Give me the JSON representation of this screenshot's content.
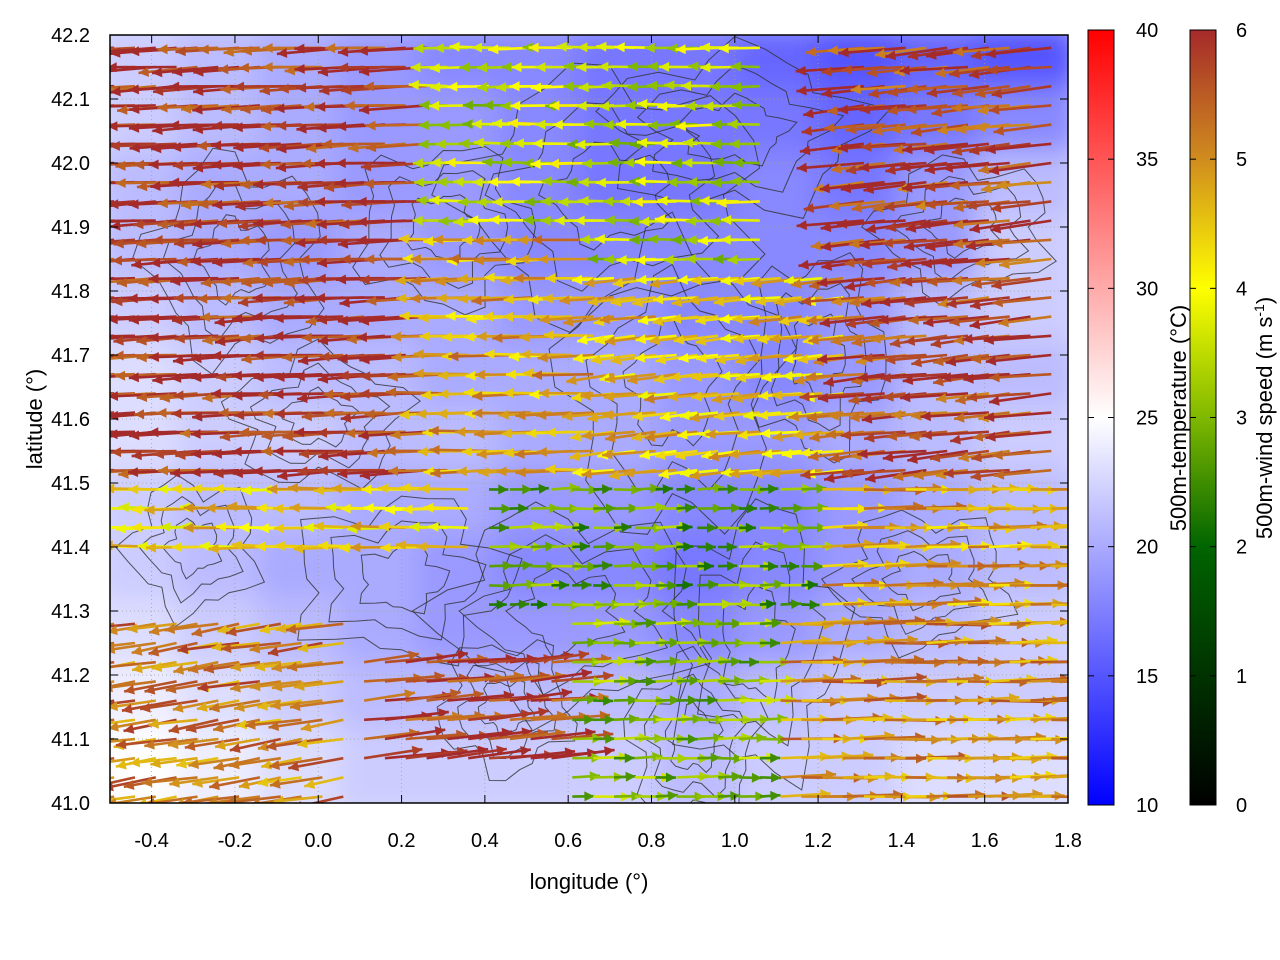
{
  "chart_data": {
    "type": "heatmap",
    "xlabel": "longitude (°)",
    "ylabel": "latitude (°)",
    "xlim": [
      -0.5,
      1.8
    ],
    "ylim": [
      41.0,
      42.2
    ],
    "x_ticks": [
      -0.4,
      -0.2,
      0.0,
      0.2,
      0.4,
      0.6,
      0.8,
      1.0,
      1.2,
      1.4,
      1.6,
      1.8
    ],
    "x_tick_labels": [
      "-0.4",
      "-0.2",
      "0.0",
      "0.2",
      "0.4",
      "0.6",
      "0.8",
      "1.0",
      "1.2",
      "1.4",
      "1.6",
      "1.8"
    ],
    "y_ticks": [
      41.0,
      41.1,
      41.2,
      41.3,
      41.4,
      41.5,
      41.6,
      41.7,
      41.8,
      41.9,
      42.0,
      42.1,
      42.2
    ],
    "y_tick_labels": [
      "41.0",
      "41.1",
      "41.2",
      "41.3",
      "41.4",
      "41.5",
      "41.6",
      "41.7",
      "41.8",
      "41.9",
      "42.0",
      "42.1",
      "42.2"
    ],
    "grid": true,
    "temperature_colorbar": {
      "label": "500m-temperature (°C)",
      "range": [
        10,
        40
      ],
      "ticks": [
        10,
        15,
        20,
        25,
        30,
        35,
        40
      ],
      "tick_labels": [
        "10",
        "15",
        "20",
        "25",
        "30",
        "35",
        "40"
      ],
      "colors": [
        "#0000ff",
        "#ffffff",
        "#ff0000"
      ]
    },
    "wind_colorbar": {
      "label_main": "500m-wind speed (m s",
      "label_sup": "-1",
      "label_close": ")",
      "range": [
        0,
        6
      ],
      "ticks": [
        0,
        1,
        2,
        3,
        4,
        5,
        6
      ],
      "tick_labels": [
        "0",
        "1",
        "2",
        "3",
        "4",
        "5",
        "6"
      ],
      "colors": [
        "#000000",
        "#006400",
        "#7fb800",
        "#ffff00",
        "#d08c1e",
        "#a52a2a"
      ]
    },
    "temperature_field": [
      {
        "lat": 42.15,
        "values": [
          22,
          21,
          20,
          19,
          18,
          18,
          17,
          17,
          16,
          15,
          16,
          15
        ]
      },
      {
        "lat": 42.05,
        "values": [
          22,
          21,
          20,
          19,
          19,
          18,
          17,
          17,
          17,
          16,
          17,
          18
        ]
      },
      {
        "lat": 41.95,
        "values": [
          21,
          20,
          20,
          19,
          19,
          18,
          17,
          17,
          18,
          17,
          19,
          21
        ]
      },
      {
        "lat": 41.85,
        "values": [
          21,
          20,
          19,
          20,
          19,
          18,
          18,
          18,
          18,
          18,
          19,
          22
        ]
      },
      {
        "lat": 41.75,
        "values": [
          22,
          21,
          20,
          20,
          20,
          19,
          19,
          18,
          18,
          19,
          21,
          22
        ]
      },
      {
        "lat": 41.65,
        "values": [
          23,
          22,
          21,
          21,
          20,
          20,
          20,
          19,
          18,
          19,
          21,
          21
        ]
      },
      {
        "lat": 41.55,
        "values": [
          23,
          22,
          22,
          21,
          21,
          20,
          20,
          19,
          19,
          20,
          21,
          22
        ]
      },
      {
        "lat": 41.45,
        "values": [
          22,
          21,
          21,
          20,
          20,
          19,
          19,
          18,
          18,
          19,
          20,
          21
        ]
      },
      {
        "lat": 41.35,
        "values": [
          22,
          21,
          20,
          20,
          19,
          18,
          18,
          17,
          18,
          19,
          20,
          21
        ]
      },
      {
        "lat": 41.25,
        "values": [
          23,
          22,
          21,
          20,
          19,
          19,
          19,
          18,
          19,
          20,
          21,
          22
        ]
      },
      {
        "lat": 41.15,
        "values": [
          24,
          23,
          22,
          21,
          21,
          21,
          21,
          20,
          21,
          22,
          22,
          22
        ]
      },
      {
        "lat": 41.05,
        "values": [
          25,
          24,
          23,
          22,
          22,
          22,
          22,
          21,
          22,
          22,
          23,
          23
        ]
      }
    ],
    "wind_regions": [
      {
        "lat_range": [
          41.5,
          42.2
        ],
        "lon_range": [
          -0.5,
          0.3
        ],
        "direction_deg": 190,
        "speed": 5.9
      },
      {
        "lat_range": [
          41.5,
          41.9
        ],
        "lon_range": [
          0.3,
          0.7
        ],
        "direction_deg": 185,
        "speed": 4.5
      },
      {
        "lat_range": [
          41.85,
          42.2
        ],
        "lon_range": [
          0.3,
          1.1
        ],
        "direction_deg": 180,
        "speed": 3.0
      },
      {
        "lat_range": [
          41.5,
          41.85
        ],
        "lon_range": [
          0.7,
          1.3
        ],
        "direction_deg": 200,
        "speed": 4.2
      },
      {
        "lat_range": [
          41.5,
          42.2
        ],
        "lon_range": [
          1.3,
          1.8
        ],
        "direction_deg": 200,
        "speed": 5.6
      },
      {
        "lat_range": [
          41.38,
          41.5
        ],
        "lon_range": [
          -0.5,
          0.4
        ],
        "direction_deg": 180,
        "speed": 4.0
      },
      {
        "lat_range": [
          41.3,
          41.5
        ],
        "lon_range": [
          0.4,
          1.2
        ],
        "direction_deg": 5,
        "speed": 2.2
      },
      {
        "lat_range": [
          41.3,
          41.5
        ],
        "lon_range": [
          1.2,
          1.8
        ],
        "direction_deg": 5,
        "speed": 4.5
      },
      {
        "lat_range": [
          41.0,
          41.3
        ],
        "lon_range": [
          -0.5,
          0.1
        ],
        "direction_deg": 210,
        "speed": 5.0
      },
      {
        "lat_range": [
          41.05,
          41.25
        ],
        "lon_range": [
          0.1,
          0.6
        ],
        "direction_deg": 20,
        "speed": 5.8
      },
      {
        "lat_range": [
          41.0,
          41.3
        ],
        "lon_range": [
          0.6,
          1.1
        ],
        "direction_deg": 5,
        "speed": 2.5
      },
      {
        "lat_range": [
          41.0,
          41.3
        ],
        "lon_range": [
          1.1,
          1.8
        ],
        "direction_deg": 5,
        "speed": 4.8
      }
    ]
  }
}
